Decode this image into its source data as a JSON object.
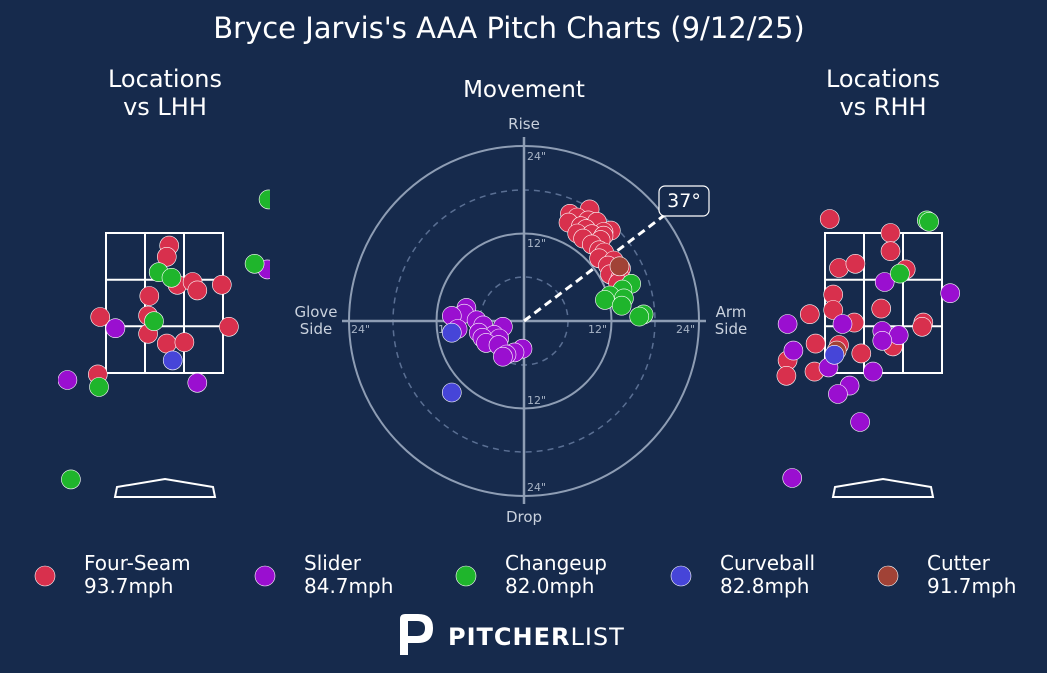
{
  "title": "Bryce Jarvis's AAA Pitch Charts (9/12/25)",
  "panels": {
    "lhh_title": [
      "Locations",
      "vs LHH"
    ],
    "movement_title": "Movement",
    "rhh_title": [
      "Locations",
      "vs RHH"
    ]
  },
  "movement_labels": {
    "rise": "Rise",
    "drop": "Drop",
    "glove": [
      "Glove",
      "Side"
    ],
    "arm": [
      "Arm",
      "Side"
    ],
    "ring_labels": [
      "24\"",
      "12\"",
      "12\"",
      "24\"",
      "24\"",
      "12\"",
      "12\"",
      "24\""
    ],
    "arm_angle": "37°"
  },
  "colors": {
    "background": "#162a4c",
    "Four-Seam": "#d8304d",
    "Slider": "#9a0fd0",
    "Changeup": "#1fb52c",
    "Curveball": "#4645d8",
    "Cutter": "#a14236"
  },
  "legend": [
    {
      "pitch": "Four-Seam",
      "velo": "93.7mph"
    },
    {
      "pitch": "Slider",
      "velo": "84.7mph"
    },
    {
      "pitch": "Changeup",
      "velo": "82.0mph"
    },
    {
      "pitch": "Curveball",
      "velo": "82.8mph"
    },
    {
      "pitch": "Cutter",
      "velo": "91.7mph"
    }
  ],
  "brand": {
    "bold": "PITCHER",
    "light": "LIST"
  },
  "chart_data": [
    {
      "type": "scatter",
      "title": "Locations vs LHH",
      "units": "plate_x / plate_z in zone-fraction (0..1 inside zone)",
      "xlim": [
        -0.9,
        1.85
      ],
      "ylim": [
        -1.1,
        1.45
      ],
      "points": [
        {
          "p": "Four-Seam",
          "x": 0.54,
          "y": 0.91
        },
        {
          "p": "Four-Seam",
          "x": 0.52,
          "y": 0.83
        },
        {
          "p": "Four-Seam",
          "x": 0.61,
          "y": 0.63
        },
        {
          "p": "Four-Seam",
          "x": 0.74,
          "y": 0.65
        },
        {
          "p": "Four-Seam",
          "x": 0.78,
          "y": 0.59
        },
        {
          "p": "Four-Seam",
          "x": 0.99,
          "y": 0.63
        },
        {
          "p": "Four-Seam",
          "x": 0.37,
          "y": 0.55
        },
        {
          "p": "Four-Seam",
          "x": 0.36,
          "y": 0.41
        },
        {
          "p": "Four-Seam",
          "x": -0.05,
          "y": 0.4
        },
        {
          "p": "Four-Seam",
          "x": 0.36,
          "y": 0.28
        },
        {
          "p": "Four-Seam",
          "x": 0.52,
          "y": 0.21
        },
        {
          "p": "Four-Seam",
          "x": 0.67,
          "y": 0.22
        },
        {
          "p": "Four-Seam",
          "x": 1.05,
          "y": 0.33
        },
        {
          "p": "Four-Seam",
          "x": -0.07,
          "y": -0.01
        },
        {
          "p": "Slider",
          "x": 0.08,
          "y": 0.32
        },
        {
          "p": "Slider",
          "x": -0.33,
          "y": -0.05
        },
        {
          "p": "Slider",
          "x": 0.78,
          "y": -0.07
        },
        {
          "p": "Slider",
          "x": 1.38,
          "y": 0.74
        },
        {
          "p": "Changeup",
          "x": 1.39,
          "y": 1.24
        },
        {
          "p": "Changeup",
          "x": 1.27,
          "y": 0.78
        },
        {
          "p": "Changeup",
          "x": 0.45,
          "y": 0.72
        },
        {
          "p": "Changeup",
          "x": 0.56,
          "y": 0.68
        },
        {
          "p": "Changeup",
          "x": 0.41,
          "y": 0.37
        },
        {
          "p": "Changeup",
          "x": -0.06,
          "y": -0.1
        },
        {
          "p": "Changeup",
          "x": -0.3,
          "y": -0.76
        },
        {
          "p": "Curveball",
          "x": 0.57,
          "y": 0.09
        }
      ]
    },
    {
      "type": "scatter",
      "title": "Movement",
      "xlabel": "Glove Side / Arm Side",
      "ylabel": "Drop / Rise",
      "units": "inches",
      "xlim": [
        -24,
        24
      ],
      "ylim": [
        -24,
        24
      ],
      "arm_angle_deg": 37,
      "points": [
        {
          "p": "Four-Seam",
          "x": 9.0,
          "y": 15.3
        },
        {
          "p": "Four-Seam",
          "x": 6.3,
          "y": 14.7
        },
        {
          "p": "Four-Seam",
          "x": 7.3,
          "y": 14.2
        },
        {
          "p": "Four-Seam",
          "x": 8.8,
          "y": 13.8
        },
        {
          "p": "Four-Seam",
          "x": 10.0,
          "y": 13.6
        },
        {
          "p": "Four-Seam",
          "x": 6.1,
          "y": 13.5
        },
        {
          "p": "Four-Seam",
          "x": 7.8,
          "y": 13.0
        },
        {
          "p": "Four-Seam",
          "x": 8.5,
          "y": 12.6
        },
        {
          "p": "Four-Seam",
          "x": 11.9,
          "y": 12.4
        },
        {
          "p": "Four-Seam",
          "x": 10.9,
          "y": 12.2
        },
        {
          "p": "Four-Seam",
          "x": 7.3,
          "y": 12.0
        },
        {
          "p": "Four-Seam",
          "x": 9.3,
          "y": 11.9
        },
        {
          "p": "Four-Seam",
          "x": 10.9,
          "y": 11.7
        },
        {
          "p": "Four-Seam",
          "x": 8.1,
          "y": 11.3
        },
        {
          "p": "Four-Seam",
          "x": 10.5,
          "y": 11.1
        },
        {
          "p": "Four-Seam",
          "x": 9.3,
          "y": 10.5
        },
        {
          "p": "Four-Seam",
          "x": 10.3,
          "y": 9.7
        },
        {
          "p": "Four-Seam",
          "x": 11.0,
          "y": 9.4
        },
        {
          "p": "Four-Seam",
          "x": 10.3,
          "y": 8.6
        },
        {
          "p": "Four-Seam",
          "x": 12.3,
          "y": 8.3
        },
        {
          "p": "Four-Seam",
          "x": 11.5,
          "y": 7.6
        },
        {
          "p": "Four-Seam",
          "x": 13.3,
          "y": 7.2
        },
        {
          "p": "Four-Seam",
          "x": 11.8,
          "y": 6.4
        },
        {
          "p": "Four-Seam",
          "x": 13.2,
          "y": 5.9
        },
        {
          "p": "Four-Seam",
          "x": 12.9,
          "y": 5.2
        },
        {
          "p": "Cutter",
          "x": 13.1,
          "y": 7.5
        },
        {
          "p": "Changeup",
          "x": 14.7,
          "y": 5.1
        },
        {
          "p": "Changeup",
          "x": 13.5,
          "y": 4.3
        },
        {
          "p": "Changeup",
          "x": 11.8,
          "y": 3.5
        },
        {
          "p": "Changeup",
          "x": 13.7,
          "y": 3.1
        },
        {
          "p": "Changeup",
          "x": 11.1,
          "y": 2.9
        },
        {
          "p": "Changeup",
          "x": 13.4,
          "y": 2.1
        },
        {
          "p": "Changeup",
          "x": 16.4,
          "y": 0.9
        },
        {
          "p": "Changeup",
          "x": 15.8,
          "y": 0.6
        },
        {
          "p": "Slider",
          "x": -7.9,
          "y": 1.8
        },
        {
          "p": "Slider",
          "x": -8.2,
          "y": 1.0
        },
        {
          "p": "Slider",
          "x": -9.9,
          "y": 0.7
        },
        {
          "p": "Slider",
          "x": -6.5,
          "y": 0.1
        },
        {
          "p": "Slider",
          "x": -5.6,
          "y": -0.6
        },
        {
          "p": "Slider",
          "x": -2.9,
          "y": -0.8
        },
        {
          "p": "Slider",
          "x": -9.1,
          "y": -1.1
        },
        {
          "p": "Slider",
          "x": -6.2,
          "y": -1.6
        },
        {
          "p": "Slider",
          "x": -4.1,
          "y": -1.9
        },
        {
          "p": "Slider",
          "x": -5.7,
          "y": -2.3
        },
        {
          "p": "Slider",
          "x": -3.4,
          "y": -2.4
        },
        {
          "p": "Slider",
          "x": -5.2,
          "y": -3.0
        },
        {
          "p": "Slider",
          "x": -3.5,
          "y": -3.3
        },
        {
          "p": "Slider",
          "x": -0.2,
          "y": -3.8
        },
        {
          "p": "Slider",
          "x": -1.3,
          "y": -4.3
        },
        {
          "p": "Slider",
          "x": -2.4,
          "y": -4.6
        },
        {
          "p": "Slider",
          "x": -2.9,
          "y": -4.9
        },
        {
          "p": "Curveball",
          "x": -9.9,
          "y": -1.6
        },
        {
          "p": "Curveball",
          "x": -9.9,
          "y": -9.8
        }
      ]
    },
    {
      "type": "scatter",
      "title": "Locations vs RHH",
      "units": "plate_x / plate_z in zone-fraction (0..1 inside zone)",
      "xlim": [
        -0.9,
        1.85
      ],
      "ylim": [
        -1.1,
        1.45
      ],
      "points": [
        {
          "p": "Four-Seam",
          "x": 0.04,
          "y": 1.1
        },
        {
          "p": "Four-Seam",
          "x": 0.56,
          "y": 1.0
        },
        {
          "p": "Four-Seam",
          "x": 0.56,
          "y": 0.87
        },
        {
          "p": "Four-Seam",
          "x": 0.12,
          "y": 0.75
        },
        {
          "p": "Four-Seam",
          "x": 0.26,
          "y": 0.78
        },
        {
          "p": "Four-Seam",
          "x": 0.69,
          "y": 0.74
        },
        {
          "p": "Four-Seam",
          "x": 0.07,
          "y": 0.56
        },
        {
          "p": "Four-Seam",
          "x": 0.07,
          "y": 0.45
        },
        {
          "p": "Four-Seam",
          "x": 0.48,
          "y": 0.46
        },
        {
          "p": "Four-Seam",
          "x": -0.13,
          "y": 0.42
        },
        {
          "p": "Four-Seam",
          "x": 0.25,
          "y": 0.36
        },
        {
          "p": "Four-Seam",
          "x": 0.84,
          "y": 0.36
        },
        {
          "p": "Four-Seam",
          "x": 0.83,
          "y": 0.33
        },
        {
          "p": "Four-Seam",
          "x": -0.08,
          "y": 0.21
        },
        {
          "p": "Four-Seam",
          "x": 0.12,
          "y": 0.2
        },
        {
          "p": "Four-Seam",
          "x": 0.58,
          "y": 0.19
        },
        {
          "p": "Four-Seam",
          "x": 0.31,
          "y": 0.14
        },
        {
          "p": "Four-Seam",
          "x": -0.32,
          "y": 0.09
        },
        {
          "p": "Four-Seam",
          "x": -0.09,
          "y": 0.01
        },
        {
          "p": "Four-Seam",
          "x": -0.33,
          "y": -0.02
        },
        {
          "p": "Cutter",
          "x": 0.1,
          "y": 0.16
        },
        {
          "p": "Slider",
          "x": 0.51,
          "y": 0.65
        },
        {
          "p": "Slider",
          "x": 1.07,
          "y": 0.57
        },
        {
          "p": "Slider",
          "x": -0.32,
          "y": 0.35
        },
        {
          "p": "Slider",
          "x": 0.15,
          "y": 0.35
        },
        {
          "p": "Slider",
          "x": 0.49,
          "y": 0.3
        },
        {
          "p": "Slider",
          "x": 0.63,
          "y": 0.27
        },
        {
          "p": "Slider",
          "x": 0.49,
          "y": 0.23
        },
        {
          "p": "Slider",
          "x": -0.27,
          "y": 0.16
        },
        {
          "p": "Slider",
          "x": 0.03,
          "y": 0.04
        },
        {
          "p": "Slider",
          "x": 0.41,
          "y": 0.01
        },
        {
          "p": "Slider",
          "x": 0.21,
          "y": -0.09
        },
        {
          "p": "Slider",
          "x": 0.11,
          "y": -0.15
        },
        {
          "p": "Slider",
          "x": 0.3,
          "y": -0.35
        },
        {
          "p": "Slider",
          "x": -0.28,
          "y": -0.75
        },
        {
          "p": "Changeup",
          "x": 0.87,
          "y": 1.09
        },
        {
          "p": "Changeup",
          "x": 0.89,
          "y": 1.08
        },
        {
          "p": "Changeup",
          "x": 0.64,
          "y": 0.71
        },
        {
          "p": "Curveball",
          "x": 0.08,
          "y": 0.13
        }
      ]
    }
  ]
}
